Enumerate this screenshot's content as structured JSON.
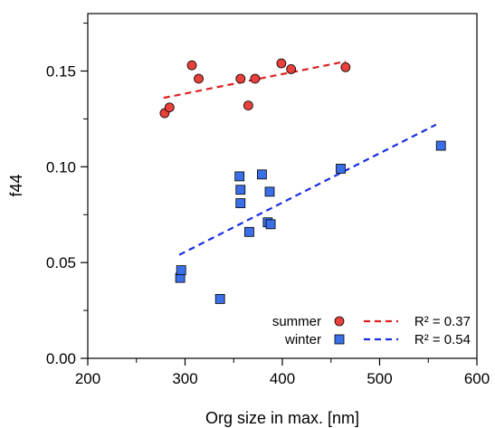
{
  "chart_data": {
    "type": "scatter",
    "xlabel": "Org size in max. [nm]",
    "ylabel": "f44",
    "xlim": [
      200,
      600
    ],
    "ylim": [
      0.0,
      0.18
    ],
    "x_ticks": [
      200,
      300,
      400,
      500,
      600
    ],
    "y_ticks": [
      0.0,
      0.05,
      0.1,
      0.15
    ],
    "grid": false,
    "legend_placement": "bottom-right",
    "series": [
      {
        "name": "summer",
        "marker": "circle",
        "color": "#e8403b",
        "points": [
          [
            279,
            0.128
          ],
          [
            284,
            0.131
          ],
          [
            307,
            0.153
          ],
          [
            314,
            0.146
          ],
          [
            357,
            0.146
          ],
          [
            365,
            0.132
          ],
          [
            372,
            0.146
          ],
          [
            399,
            0.154
          ],
          [
            409,
            0.151
          ],
          [
            465,
            0.152
          ]
        ],
        "fit": {
          "x": [
            278,
            465
          ],
          "y": [
            0.136,
            0.155
          ],
          "label": "R² = 0.37",
          "color": "#e02020"
        }
      },
      {
        "name": "winter",
        "marker": "square",
        "color": "#3b6fe8",
        "points": [
          [
            295,
            0.042
          ],
          [
            296,
            0.046
          ],
          [
            336,
            0.031
          ],
          [
            356,
            0.095
          ],
          [
            357,
            0.088
          ],
          [
            357,
            0.081
          ],
          [
            366,
            0.066
          ],
          [
            379,
            0.096
          ],
          [
            385,
            0.071
          ],
          [
            387,
            0.087
          ],
          [
            388,
            0.07
          ],
          [
            460,
            0.099
          ],
          [
            563,
            0.111
          ]
        ],
        "fit": {
          "x": [
            294,
            558
          ],
          "y": [
            0.054,
            0.122
          ],
          "label": "R² = 0.54",
          "color": "#1a2ee0"
        }
      }
    ]
  }
}
